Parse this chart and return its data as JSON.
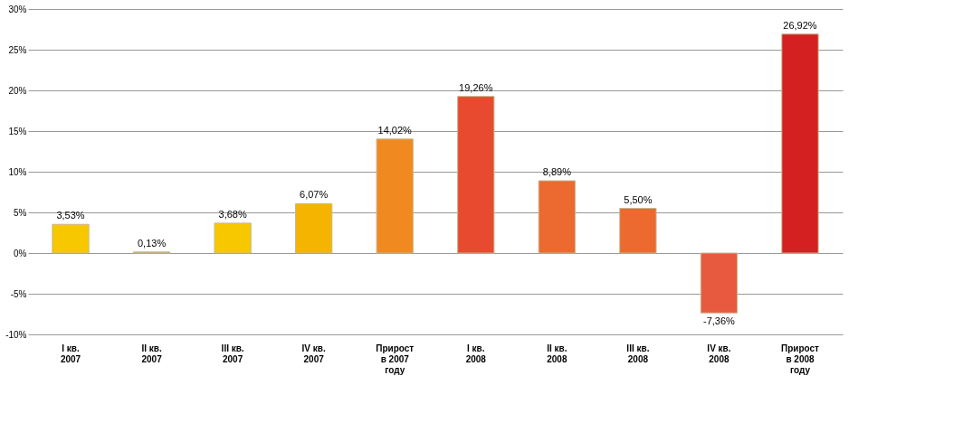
{
  "chart_data": {
    "type": "bar",
    "categories": [
      "I кв.\n2007",
      "II кв.\n2007",
      "III кв.\n2007",
      "IV кв.\n2007",
      "Прирост\nв 2007\nгоду",
      "I кв.\n2008",
      "II кв.\n2008",
      "III кв.\n2008",
      "IV кв.\n2008",
      "Прирост\nв 2008\nгоду"
    ],
    "values": [
      3.53,
      0.13,
      3.68,
      6.07,
      14.02,
      19.26,
      8.89,
      5.5,
      -7.36,
      26.92
    ],
    "colors": [
      "#f7c800",
      "#c8a060",
      "#f7c800",
      "#f5b400",
      "#f08a20",
      "#e84a30",
      "#ec6a30",
      "#ec6a30",
      "#e85a40",
      "#d42020"
    ],
    "value_labels": [
      "3,53%",
      "0,13%",
      "3,68%",
      "6,07%",
      "14,02%",
      "19,26%",
      "8,89%",
      "5,50%",
      "-7,36%",
      "26,92%"
    ],
    "ylim": [
      -10,
      30
    ],
    "yticks": [
      {
        "value": -10,
        "label": "-10%"
      },
      {
        "value": -5,
        "label": "-5%"
      },
      {
        "value": 0,
        "label": "0%"
      },
      {
        "value": 5,
        "label": "5%"
      },
      {
        "value": 10,
        "label": "10%"
      },
      {
        "value": 15,
        "label": "15%"
      },
      {
        "value": 20,
        "label": "20%"
      },
      {
        "value": 25,
        "label": "25%"
      },
      {
        "value": 30,
        "label": "30%"
      }
    ],
    "grid": "y"
  }
}
